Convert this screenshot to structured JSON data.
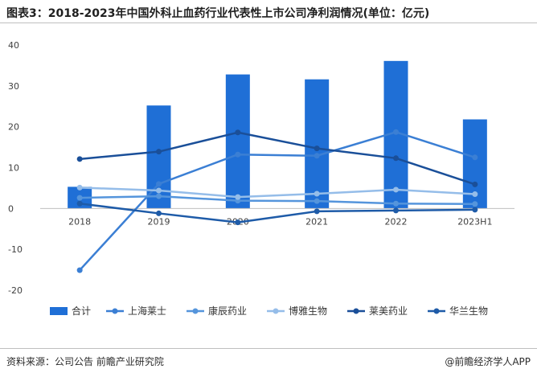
{
  "title": "图表3：2018-2023年中国外科止血药行业代表性上市公司净利润情况(单位：亿元)",
  "footer": {
    "source": "资料来源：公司公告 前瞻产业研究院",
    "credit": "@前瞻经济学人APP"
  },
  "colors": {
    "bar": "#1f6fd6",
    "shanghai_laishi": "#3b7fd4",
    "kangchen": "#5595dc",
    "boya": "#95bde9",
    "laimei": "#1a4f99",
    "hualan": "#1e5ba8",
    "axis": "#bfbfbf",
    "text": "#404040"
  },
  "chart_data": {
    "type": "bar",
    "categories": [
      "2018",
      "2019",
      "2020",
      "2021",
      "2022",
      "2023H1"
    ],
    "ylim": [
      -20,
      40
    ],
    "yticks": [
      -20,
      -10,
      0,
      10,
      20,
      30,
      40
    ],
    "grid": false,
    "legend_position": "bottom",
    "series": [
      {
        "name": "合计",
        "kind": "bar",
        "color_key": "bar",
        "values": [
          5.3,
          25.2,
          32.8,
          31.6,
          36.1,
          21.8
        ]
      },
      {
        "name": "上海莱士",
        "kind": "line",
        "color_key": "shanghai_laishi",
        "values": [
          -15.1,
          6.0,
          13.2,
          12.9,
          18.7,
          12.5
        ]
      },
      {
        "name": "康辰药业",
        "kind": "line",
        "color_key": "kangchen",
        "values": [
          2.6,
          3.0,
          1.9,
          1.8,
          1.2,
          1.1
        ]
      },
      {
        "name": "博雅生物",
        "kind": "line",
        "color_key": "boya",
        "values": [
          5.1,
          4.4,
          2.8,
          3.6,
          4.6,
          3.5
        ]
      },
      {
        "name": "莱美药业",
        "kind": "line",
        "color_key": "laimei",
        "values": [
          12.1,
          13.9,
          18.6,
          14.7,
          12.3,
          5.9
        ]
      },
      {
        "name": "华兰生物",
        "kind": "line",
        "color_key": "hualan",
        "values": [
          1.2,
          -1.2,
          -3.4,
          -0.7,
          -0.5,
          -0.3
        ]
      }
    ]
  }
}
